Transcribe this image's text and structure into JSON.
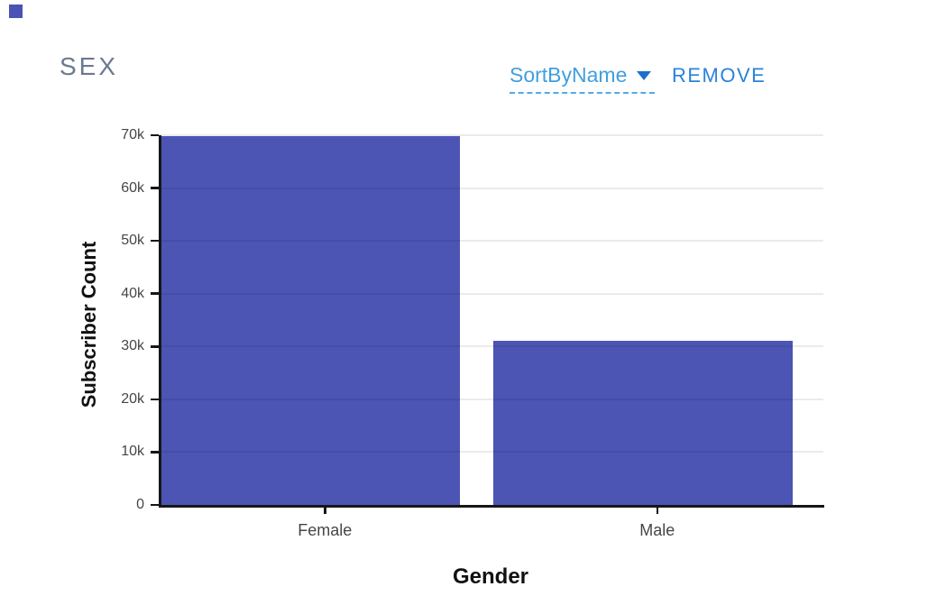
{
  "page": {
    "title": "SEX",
    "background": "#ffffff"
  },
  "controls": {
    "sort_button_label": "SortByName",
    "remove_button_label": "REMOVE",
    "chevron_icon": "caret-down"
  },
  "colors": {
    "accent_square": "#4b52b5",
    "bar": "#4c54b4",
    "title_text": "#6b7990",
    "sort_link": "#3f9fe0",
    "caret": "#1c6fce",
    "sort_underline": "#55a9e8",
    "remove_link": "#2b82d9",
    "axis": "#161616",
    "tick_text": "#464646",
    "axis_title_text": "#111111",
    "grid": "rgba(0,0,0,0.08)"
  },
  "chart_data": {
    "type": "bar",
    "orientation": "vertical",
    "title": "SEX",
    "categories": [
      "Female",
      "Male"
    ],
    "values": [
      69900,
      31000
    ],
    "xlabel": "Gender",
    "ylabel": "Subscriber Count",
    "ylim": [
      0,
      70000
    ],
    "ytick_interval": 10000,
    "ytick_labels": [
      "0",
      "10k",
      "20k",
      "30k",
      "40k",
      "50k",
      "60k",
      "70k"
    ],
    "grid": true,
    "legend": false,
    "bar_color": "#4c54b4"
  }
}
